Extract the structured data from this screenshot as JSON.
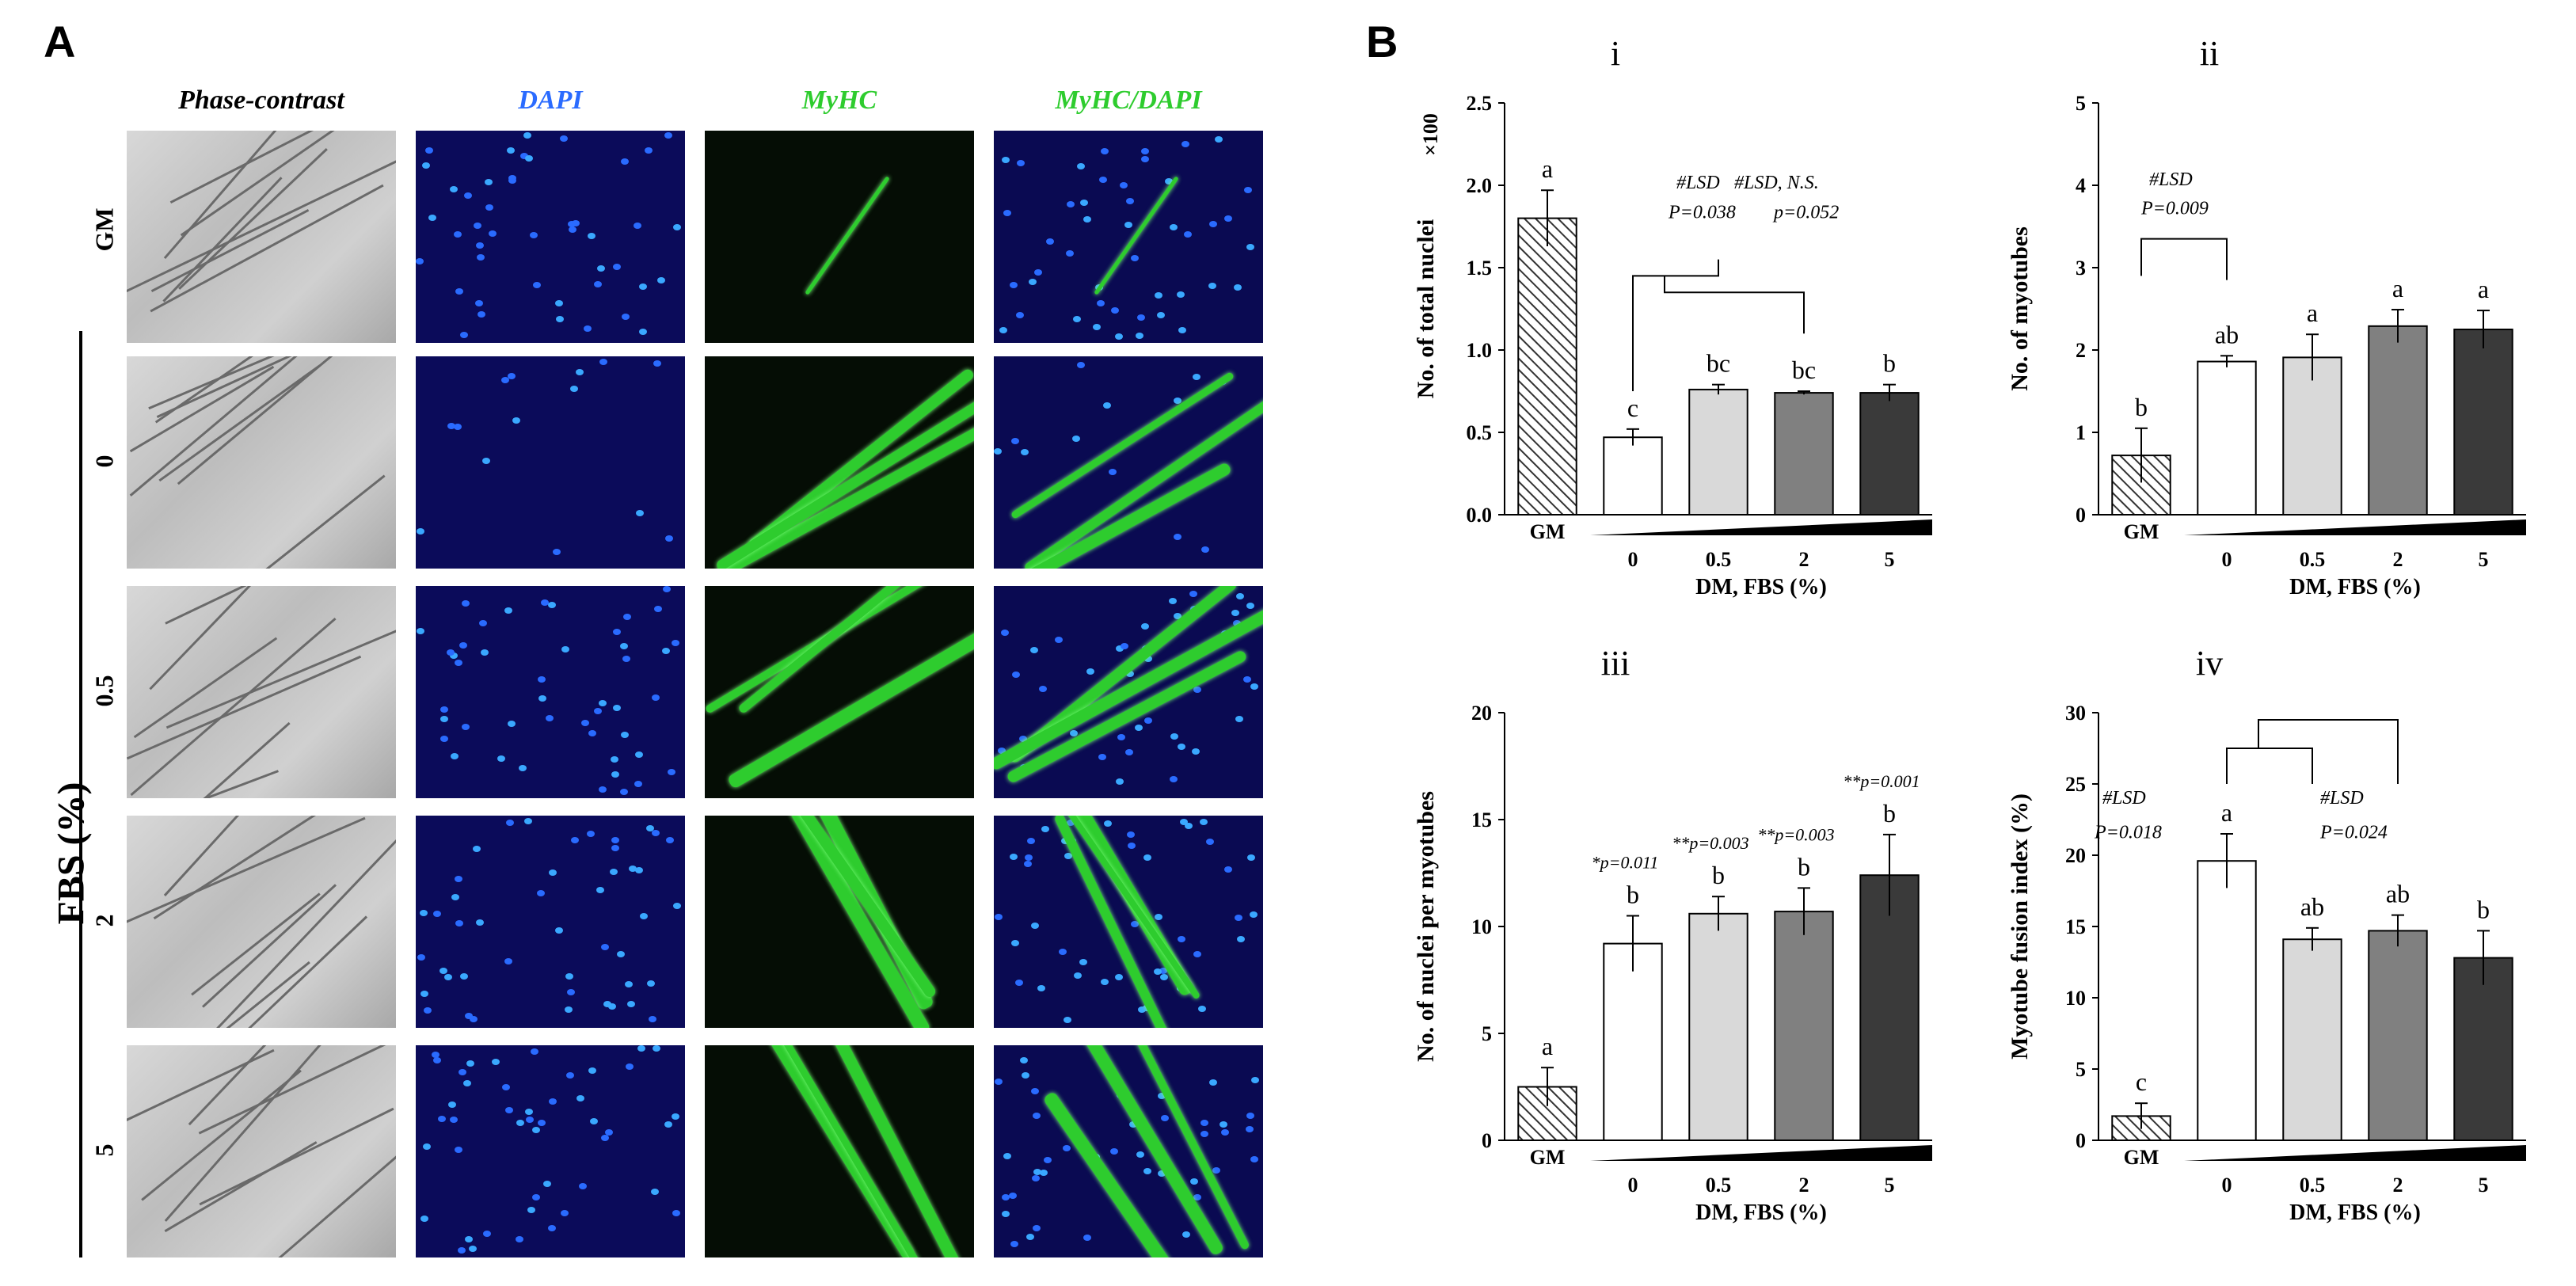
{
  "panel_a": {
    "letter": "A",
    "column_headers": [
      "Phase-contrast",
      "DAPI",
      "MyHC",
      "MyHC/DAPI"
    ],
    "row_labels": [
      "GM",
      "0",
      "0.5",
      "2",
      "5"
    ],
    "axis_label": "FBS (%)"
  },
  "panel_b": {
    "letter": "B"
  },
  "colors": {
    "gm_bar": "#ffffff",
    "fbs_0": "#ffffff",
    "fbs_05": "#d9d9d9",
    "fbs_2": "#808080",
    "fbs_5": "#3a3a3a",
    "dapi_blue": "#1e5cff",
    "myhc_green": "#2ecc2e"
  },
  "chart_data": [
    {
      "id": "i",
      "type": "bar",
      "panel_label": "i",
      "categories": [
        "GM",
        "0",
        "0.5",
        "2",
        "5"
      ],
      "values": [
        1.8,
        0.47,
        0.76,
        0.74,
        0.74
      ],
      "errors": [
        0.17,
        0.05,
        0.03,
        0.01,
        0.05
      ],
      "letters": [
        "a",
        "c",
        "bc",
        "bc",
        "b"
      ],
      "ylabel": "No. of total nuclei",
      "yunit": "×100",
      "xlabel": "DM, FBS (%)",
      "ylim": [
        0,
        2.5
      ],
      "yticks": [
        "0.0",
        "0.5",
        "1.0",
        "1.5",
        "2.0",
        "2.5"
      ],
      "annotations": [
        "#LSD",
        "P=0.038",
        "#LSD, N.S.",
        "p=0.052"
      ]
    },
    {
      "id": "ii",
      "type": "bar",
      "panel_label": "ii",
      "categories": [
        "GM",
        "0",
        "0.5",
        "2",
        "5"
      ],
      "values": [
        0.72,
        1.86,
        1.91,
        2.29,
        2.25
      ],
      "errors": [
        0.33,
        0.07,
        0.28,
        0.2,
        0.23
      ],
      "letters": [
        "b",
        "ab",
        "a",
        "a",
        "a"
      ],
      "ylabel": "No. of myotubes",
      "xlabel": "DM, FBS (%)",
      "ylim": [
        0,
        5
      ],
      "yticks": [
        "0",
        "1",
        "2",
        "3",
        "4",
        "5"
      ],
      "annotations": [
        "#LSD",
        "P=0.009"
      ]
    },
    {
      "id": "iii",
      "type": "bar",
      "panel_label": "iii",
      "categories": [
        "GM",
        "0",
        "0.5",
        "2",
        "5"
      ],
      "values": [
        2.5,
        9.2,
        10.6,
        10.7,
        12.4
      ],
      "errors": [
        0.9,
        1.3,
        0.8,
        1.1,
        1.9
      ],
      "letters": [
        "a",
        "b",
        "b",
        "b",
        "b"
      ],
      "ylabel": "No. of nuclei per myotubes",
      "xlabel": "DM, FBS (%)",
      "ylim": [
        0,
        20
      ],
      "yticks": [
        "0",
        "5",
        "10",
        "15",
        "20"
      ],
      "pvalues": [
        "",
        "*p=0.011",
        "**p=0.003",
        "**p=0.003",
        "**p=0.001"
      ]
    },
    {
      "id": "iv",
      "type": "bar",
      "panel_label": "iv",
      "categories": [
        "GM",
        "0",
        "0.5",
        "2",
        "5"
      ],
      "values": [
        1.7,
        19.6,
        14.1,
        14.7,
        12.8
      ],
      "errors": [
        0.9,
        1.9,
        0.8,
        1.1,
        1.9
      ],
      "letters": [
        "c",
        "a",
        "ab",
        "ab",
        "b"
      ],
      "ylabel": "Myotube fusion index (%)",
      "xlabel": "DM, FBS (%)",
      "ylim": [
        0,
        30
      ],
      "yticks": [
        "0",
        "5",
        "10",
        "15",
        "20",
        "25",
        "30"
      ],
      "annotations": [
        "#LSD",
        "P=0.018",
        "#LSD",
        "P=0.024"
      ]
    }
  ]
}
